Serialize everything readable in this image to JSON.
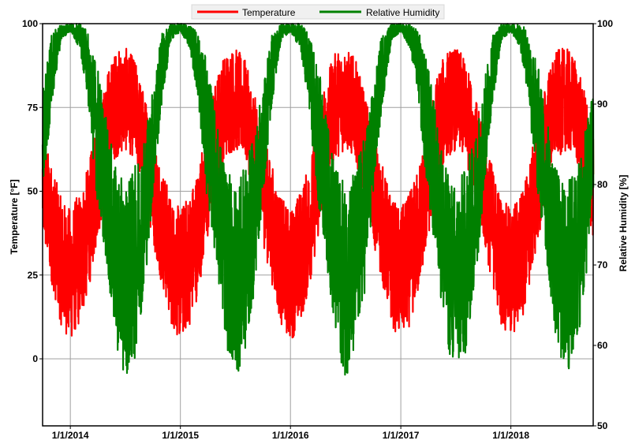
{
  "chart_data": {
    "type": "line",
    "title": "",
    "legend": {
      "placement": "top-center",
      "entries": [
        "Temperature",
        "Relative Humidity"
      ]
    },
    "grid": true,
    "x": {
      "ticks": [
        "1/1/2014",
        "1/1/2015",
        "1/1/2016",
        "1/1/2017",
        "1/1/2018"
      ],
      "range": [
        "2013-10-01",
        "2018-10-01"
      ]
    },
    "y_left": {
      "label": "Temperature [°F]",
      "range": [
        -20,
        100
      ],
      "ticks": [
        "0",
        "25",
        "50",
        "75",
        "100"
      ]
    },
    "y_right": {
      "label": "Relative Humidity [%]",
      "range": [
        50,
        100
      ],
      "ticks": [
        "50",
        "60",
        "70",
        "80",
        "90",
        "100"
      ]
    },
    "series": [
      {
        "name": "Temperature",
        "axis": "left",
        "color": "#ff0000",
        "envelope_by_month": {
          "months": [
            "Jan",
            "Feb",
            "Mar",
            "Apr",
            "May",
            "Jun",
            "Jul",
            "Aug",
            "Sep",
            "Oct",
            "Nov",
            "Dec"
          ],
          "typical_low": [
            5,
            10,
            20,
            35,
            50,
            60,
            62,
            60,
            50,
            35,
            22,
            10
          ],
          "typical_high": [
            45,
            50,
            58,
            70,
            85,
            92,
            93,
            90,
            80,
            68,
            58,
            48
          ]
        }
      },
      {
        "name": "Relative Humidity",
        "axis": "right",
        "color": "#008000",
        "envelope_by_month": {
          "months": [
            "Jan",
            "Feb",
            "Mar",
            "Apr",
            "May",
            "Jun",
            "Jul",
            "Aug",
            "Sep",
            "Oct",
            "Nov",
            "Dec"
          ],
          "typical_low": [
            99,
            97,
            90,
            78,
            70,
            60,
            56,
            58,
            66,
            78,
            90,
            98
          ],
          "typical_high": [
            100,
            100,
            99,
            95,
            88,
            82,
            80,
            82,
            86,
            92,
            99,
            100
          ]
        }
      }
    ]
  }
}
